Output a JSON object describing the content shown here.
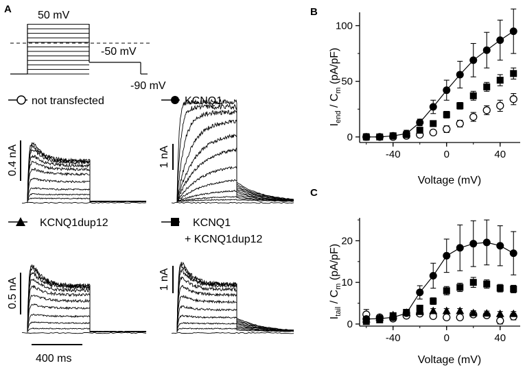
{
  "panels": {
    "a": "A",
    "b": "B",
    "c": "C"
  },
  "protocol": {
    "v_step_top": "50 mV",
    "v_tail": "-50 mV",
    "v_hold": "-90 mV"
  },
  "traces": [
    {
      "label": "not transfected",
      "marker": "open-circle",
      "scale_label": "0.4 nA"
    },
    {
      "label": "KCNQ1",
      "marker": "filled-circle",
      "scale_label": "1 nA"
    },
    {
      "label": "KCNQ1dup12",
      "marker": "filled-triangle",
      "scale_label": "0.5 nA"
    },
    {
      "label": "KCNQ1",
      "label2": "+ KCNQ1dup12",
      "marker": "filled-square",
      "scale_label": "1 nA"
    }
  ],
  "time_scale": "400 ms",
  "chart_data": [
    {
      "id": "B",
      "type": "scatter",
      "ylabel_main": "I",
      "ylabel_sub1": "end",
      "ylabel_mid": " / C",
      "ylabel_sub2": "m",
      "ylabel_unit": " (pA/pF)",
      "xlabel": "Voltage (mV)",
      "xlim": [
        -65,
        55
      ],
      "ylim": [
        -5,
        112
      ],
      "xticks": [
        -40,
        0,
        40
      ],
      "yticks": [
        0,
        50,
        100
      ],
      "x": [
        -60,
        -50,
        -40,
        -30,
        -20,
        -10,
        0,
        10,
        20,
        30,
        40,
        50
      ],
      "series": [
        {
          "name": "not transfected",
          "marker": "open-circle",
          "line": false,
          "values": [
            0,
            0,
            0,
            1,
            2,
            4,
            7,
            12,
            18,
            24,
            28,
            34
          ],
          "errors": [
            3,
            2,
            2,
            2,
            2,
            2,
            3,
            3,
            4,
            4,
            5,
            5
          ]
        },
        {
          "name": "KCNQ1",
          "marker": "filled-circle",
          "line": true,
          "values": [
            0,
            0,
            1,
            3,
            13,
            27,
            42,
            56,
            69,
            78,
            87,
            95
          ],
          "errors": [
            2,
            2,
            2,
            3,
            3,
            6,
            9,
            12,
            15,
            16,
            18,
            20
          ]
        },
        {
          "name": "KCNQ1 + KCNQ1dup12",
          "marker": "filled-square",
          "line": false,
          "values": [
            0,
            0,
            1,
            2,
            6,
            12,
            20,
            28,
            37,
            45,
            51,
            57
          ],
          "errors": [
            2,
            2,
            2,
            2,
            2,
            2,
            3,
            3,
            4,
            4,
            5,
            5
          ]
        }
      ]
    },
    {
      "id": "C",
      "type": "scatter",
      "ylabel_main": "I",
      "ylabel_sub1": "tail",
      "ylabel_mid": " / C",
      "ylabel_sub2": "m",
      "ylabel_unit": " (pA/pF)",
      "xlabel": "Voltage (mV)",
      "xlim": [
        -65,
        55
      ],
      "ylim": [
        -0.5,
        25.5
      ],
      "xticks": [
        -40,
        0,
        40
      ],
      "yticks": [
        0,
        10,
        20
      ],
      "x": [
        -60,
        -50,
        -40,
        -30,
        -20,
        -10,
        0,
        10,
        20,
        30,
        40,
        50
      ],
      "series": [
        {
          "name": "not transfected",
          "marker": "open-circle",
          "line": false,
          "values": [
            2.3,
            1.6,
            1.3,
            2.0,
            2.5,
            1.9,
            1.6,
            1.6,
            2.3,
            2.1,
            0.8,
            1.8
          ],
          "errors": [
            1.2,
            0.6,
            0.5,
            0.6,
            0.5,
            0.5,
            0.5,
            0.5,
            0.6,
            0.6,
            0.8,
            0.8
          ]
        },
        {
          "name": "KCNQ1",
          "marker": "filled-circle",
          "line": true,
          "values": [
            1.2,
            1.3,
            1.6,
            2.6,
            7.6,
            11.6,
            16.4,
            18.3,
            19.3,
            19.6,
            18.8,
            17.0
          ],
          "errors": [
            0.4,
            0.4,
            0.4,
            0.6,
            1.6,
            3.0,
            4.0,
            5.5,
            5.5,
            5.4,
            4.8,
            5.2
          ]
        },
        {
          "name": "KCNQ1dup12",
          "marker": "filled-triangle",
          "line": false,
          "values": [
            1.2,
            1.6,
            2.2,
            2.8,
            3.0,
            3.2,
            3.2,
            3.2,
            2.7,
            2.6,
            2.5,
            2.5
          ],
          "errors": [
            0.4,
            0.4,
            0.5,
            0.5,
            0.5,
            0.5,
            0.5,
            0.5,
            0.5,
            0.5,
            0.5,
            0.5
          ]
        },
        {
          "name": "KCNQ1 + KCNQ1dup12",
          "marker": "filled-square",
          "line": false,
          "values": [
            0.6,
            1.0,
            2.0,
            2.8,
            3.8,
            5.5,
            8.0,
            8.8,
            10.0,
            9.6,
            8.6,
            8.4
          ],
          "errors": [
            0.4,
            0.4,
            0.5,
            0.6,
            0.6,
            0.8,
            1.0,
            1.0,
            1.2,
            1.0,
            0.9,
            0.9
          ]
        }
      ]
    }
  ]
}
